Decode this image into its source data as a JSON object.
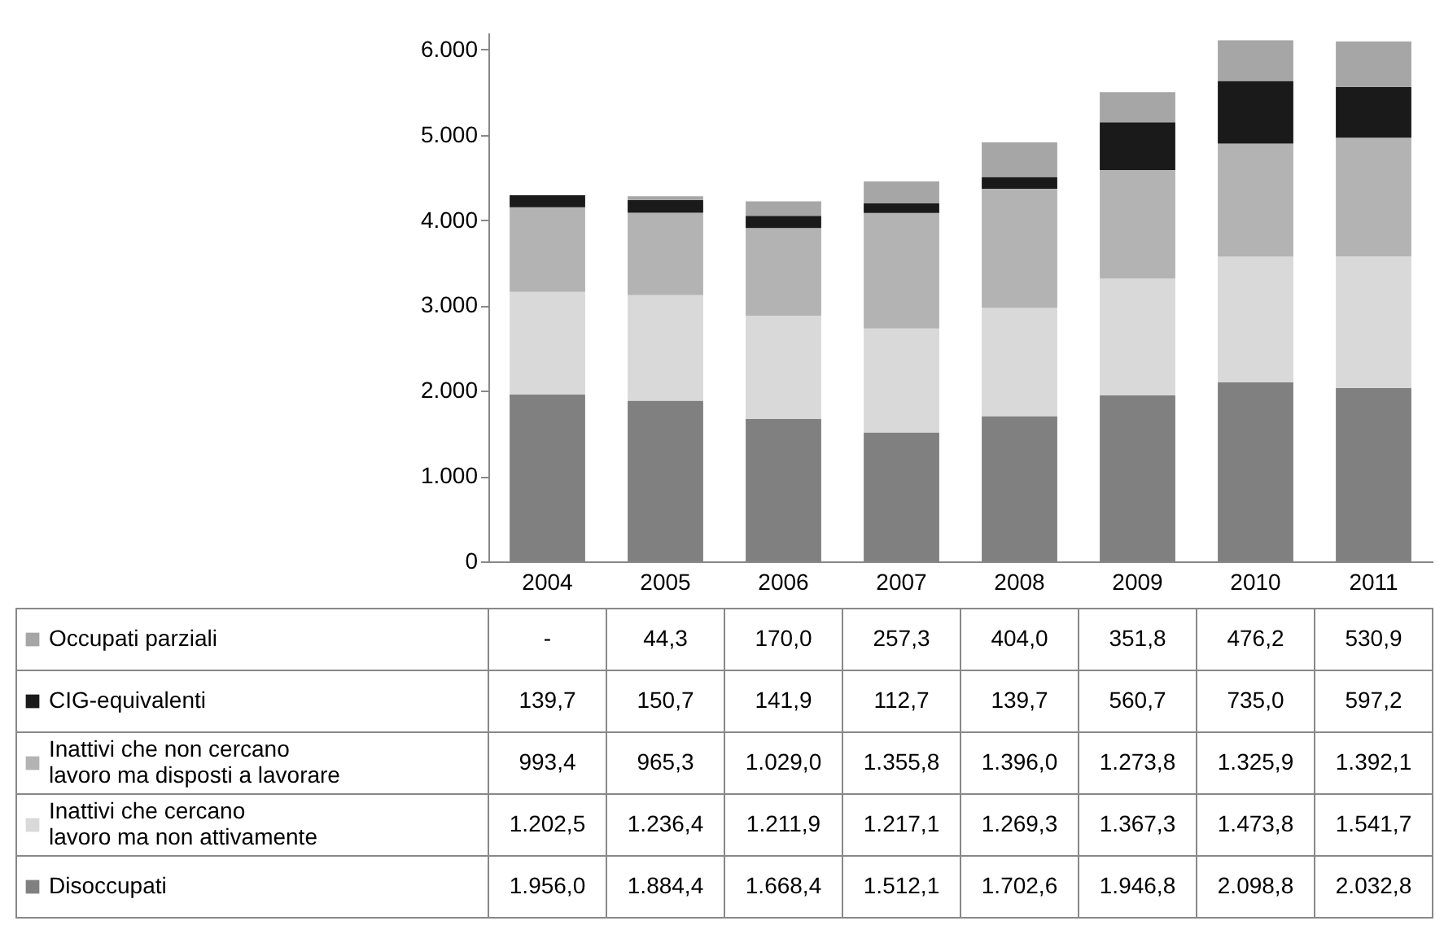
{
  "chart_data": {
    "type": "bar",
    "stacked": true,
    "legend": "bottom",
    "categories": [
      "2004",
      "2005",
      "2006",
      "2007",
      "2008",
      "2009",
      "2010",
      "2011"
    ],
    "ylim": [
      0,
      6200
    ],
    "yticks": [
      {
        "value": 0,
        "label": "0"
      },
      {
        "value": 1000,
        "label": "1.000"
      },
      {
        "value": 2000,
        "label": "2.000"
      },
      {
        "value": 3000,
        "label": "3.000"
      },
      {
        "value": 4000,
        "label": "4.000"
      },
      {
        "value": 5000,
        "label": "5.000"
      },
      {
        "value": 6000,
        "label": "6.000"
      }
    ],
    "series": [
      {
        "name": "Disoccupati",
        "color": "#808080",
        "values": [
          1956.0,
          1884.4,
          1668.4,
          1512.1,
          1702.6,
          1946.8,
          2098.8,
          2032.8
        ],
        "value_labels": [
          "1.956,0",
          "1.884,4",
          "1.668,4",
          "1.512,1",
          "1.702,6",
          "1.946,8",
          "2.098,8",
          "2.032,8"
        ]
      },
      {
        "name": "Inattivi che cercano lavoro ma non attivamente",
        "color": "#d9d9d9",
        "values": [
          1202.5,
          1236.4,
          1211.9,
          1217.1,
          1269.3,
          1367.3,
          1473.8,
          1541.7
        ],
        "value_labels": [
          "1.202,5",
          "1.236,4",
          "1.211,9",
          "1.217,1",
          "1.269,3",
          "1.367,3",
          "1.473,8",
          "1.541,7"
        ]
      },
      {
        "name": "Inattivi che non cercano lavoro ma disposti a lavorare",
        "color": "#b3b3b3",
        "values": [
          993.4,
          965.3,
          1029.0,
          1355.8,
          1396.0,
          1273.8,
          1325.9,
          1392.1
        ],
        "value_labels": [
          "993,4",
          "965,3",
          "1.029,0",
          "1.355,8",
          "1.396,0",
          "1.273,8",
          "1.325,9",
          "1.392,1"
        ]
      },
      {
        "name": "CIG-equivalenti",
        "color": "#1a1a1a",
        "values": [
          139.7,
          150.7,
          141.9,
          112.7,
          139.7,
          560.7,
          735.0,
          597.2
        ],
        "value_labels": [
          "139,7",
          "150,7",
          "141,9",
          "112,7",
          "139,7",
          "560,7",
          "735,0",
          "597,2"
        ]
      },
      {
        "name": "Occupati parziali",
        "color": "#a6a6a6",
        "values": [
          null,
          44.3,
          170.0,
          257.3,
          404.0,
          351.8,
          476.2,
          530.9
        ],
        "value_labels": [
          "-",
          "44,3",
          "170,0",
          "257,3",
          "404,0",
          "351,8",
          "476,2",
          "530,9"
        ]
      }
    ]
  }
}
